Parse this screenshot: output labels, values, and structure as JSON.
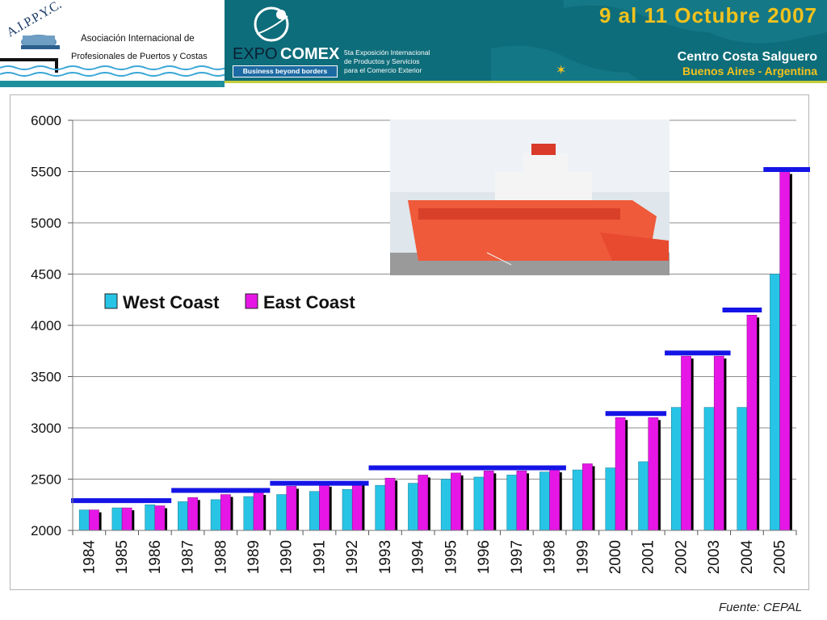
{
  "header": {
    "aippyc_logo_text": "A.I.P.P.Y.C.",
    "aippyc_line1": "Asociación Internacional de",
    "aippyc_line2": "Profesionales de Puertos y Costas",
    "expo_word_a": "EXPO",
    "expo_word_b": "COMEX",
    "expo_tagline": "Business beyond borders",
    "expo_desc_1": "5ta Exposición Internacional",
    "expo_desc_2": "de Productos y Servicios",
    "expo_desc_3": "para el Comercio Exterior",
    "dates": "9 al 11 Octubre 2007",
    "venue": "Centro Costa Salguero",
    "city": "Buenos Aires - Argentina"
  },
  "colors": {
    "header_teal": "#0e6d7a",
    "west_coast": "#27c4e6",
    "east_coast": "#e617e6",
    "bar_shadow": "#000000",
    "highlight_line": "#1414e6",
    "dates_yellow": "#f2c21c"
  },
  "source": "Fuente: CEPAL",
  "chart_data": {
    "type": "bar",
    "title": "",
    "xlabel": "",
    "ylabel": "",
    "ylim": [
      2000,
      6000
    ],
    "yticks": [
      2000,
      2500,
      3000,
      3500,
      4000,
      4500,
      5000,
      5500,
      6000
    ],
    "grid": true,
    "legend_position": "upper-left inside plot",
    "categories": [
      "1984",
      "1985",
      "1986",
      "1987",
      "1988",
      "1989",
      "1990",
      "1991",
      "1992",
      "1993",
      "1994",
      "1995",
      "1996",
      "1997",
      "1998",
      "1999",
      "2000",
      "2001",
      "2002",
      "2003",
      "2004",
      "2005"
    ],
    "series": [
      {
        "name": "West Coast",
        "values": [
          2200,
          2220,
          2250,
          2280,
          2300,
          2330,
          2350,
          2380,
          2400,
          2440,
          2460,
          2500,
          2520,
          2540,
          2570,
          2590,
          2610,
          2670,
          3200,
          3200,
          3200,
          4500
        ]
      },
      {
        "name": "East Coast",
        "values": [
          2200,
          2220,
          2240,
          2320,
          2350,
          2370,
          2430,
          2450,
          2480,
          2510,
          2540,
          2560,
          2580,
          2580,
          2590,
          2650,
          3100,
          3100,
          3700,
          3700,
          4100,
          5500
        ]
      }
    ],
    "annotations": [
      {
        "label": "max size line",
        "years": [
          "1984",
          "1986"
        ],
        "value": 2290
      },
      {
        "label": "max size line",
        "years": [
          "1987",
          "1989"
        ],
        "value": 2390
      },
      {
        "label": "max size line",
        "years": [
          "1990",
          "1992"
        ],
        "value": 2460
      },
      {
        "label": "max size line",
        "years": [
          "1993",
          "1998"
        ],
        "value": 2610
      },
      {
        "label": "max size line",
        "years": [
          "2000",
          "2001"
        ],
        "value": 3140
      },
      {
        "label": "max size line",
        "years": [
          "2002",
          "2003"
        ],
        "value": 3730
      },
      {
        "label": "max size line",
        "years": [
          "2004",
          "2004"
        ],
        "value": 4150
      },
      {
        "label": "max size line",
        "years": [
          "2005",
          "2005"
        ],
        "value": 5520
      }
    ]
  }
}
